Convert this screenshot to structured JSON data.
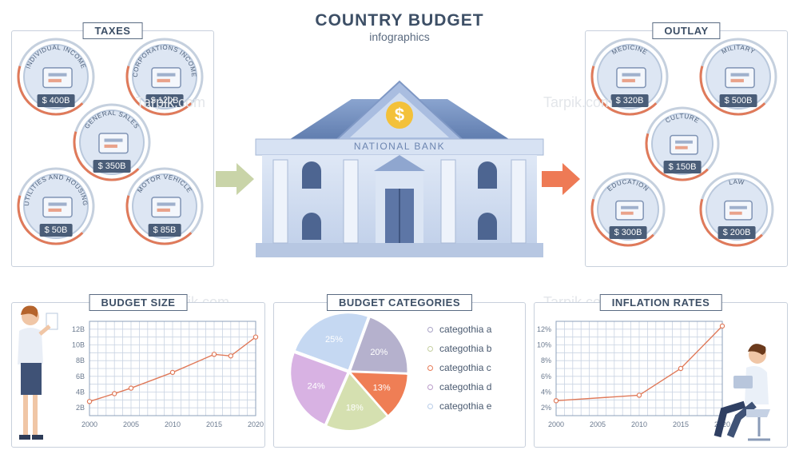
{
  "header": {
    "title": "COUNTRY BUDGET",
    "subtitle": "infographics"
  },
  "taxes": {
    "label": "TAXES",
    "items": [
      {
        "name": "INDIVIDUAL INCOME",
        "value": "$ 400B"
      },
      {
        "name": "CORPORATIONS INCOME",
        "value": "$ 120B"
      },
      {
        "name": "GENERAL SALES",
        "value": "$ 350B"
      },
      {
        "name": "UTILITIES AND HOUSING",
        "value": "$ 50B"
      },
      {
        "name": "MOTOR VEHICLE",
        "value": "$ 85B"
      }
    ]
  },
  "outlay": {
    "label": "OUTLAY",
    "items": [
      {
        "name": "MEDICINE",
        "value": "$ 320B"
      },
      {
        "name": "MILITARY",
        "value": "$ 500B"
      },
      {
        "name": "CULTURE",
        "value": "$ 150B"
      },
      {
        "name": "EDUCATION",
        "value": "$ 300B"
      },
      {
        "name": "LAW",
        "value": "$ 200B"
      }
    ]
  },
  "bank": {
    "label": "NATIONAL BANK",
    "symbol": "$"
  },
  "watermark": "Tarpik.com",
  "colors": {
    "accent": "#e07a5a",
    "arrow_in": "#c9d4a8",
    "arrow_out": "#ee7a55",
    "ink": "#3d4f66"
  },
  "charts": {
    "budget_size_label": "BUDGET SIZE",
    "categories_label": "BUDGET CATEGORIES",
    "inflation_label": "INFLATION RATES"
  },
  "chart_data": [
    {
      "type": "line",
      "title": "BUDGET SIZE",
      "x": [
        2000,
        2003,
        2005,
        2010,
        2015,
        2017,
        2020
      ],
      "y": [
        2.8,
        3.8,
        4.5,
        6.5,
        8.8,
        8.6,
        11.0
      ],
      "x_ticks": [
        "2000",
        "2005",
        "2010",
        "2015",
        "2020"
      ],
      "y_ticks": [
        "2B",
        "4B",
        "6B",
        "8B",
        "10B",
        "12B"
      ],
      "xlim": [
        2000,
        2020
      ],
      "ylim": [
        1,
        13
      ]
    },
    {
      "type": "pie",
      "title": "BUDGET CATEGORIES",
      "slices": [
        {
          "label": "categothia a",
          "value": 25,
          "text": "25%",
          "color": "#c5d8f2"
        },
        {
          "label": "categothia b",
          "value": 20,
          "text": "20%",
          "color": "#b5b1cd"
        },
        {
          "label": "categothia c",
          "value": 13,
          "text": "13%",
          "color": "#ef7e55"
        },
        {
          "label": "categothia d",
          "value": 18,
          "text": "18%",
          "color": "#d5e0b0"
        },
        {
          "label": "categothia e",
          "value": 24,
          "text": "24%",
          "color": "#d8b2e3"
        }
      ],
      "legend": [
        {
          "label": "categothia a",
          "color": "#a9a3c6"
        },
        {
          "label": "categothia b",
          "color": "#c5cfa0"
        },
        {
          "label": "categothia c",
          "color": "#e77b57"
        },
        {
          "label": "categothia d",
          "color": "#b99bc9"
        },
        {
          "label": "categothia e",
          "color": "#b8cde8"
        }
      ]
    },
    {
      "type": "line",
      "title": "INFLATION RATES",
      "x": [
        2000,
        2010,
        2015,
        2020
      ],
      "y": [
        2.9,
        3.6,
        7.0,
        12.4
      ],
      "x_ticks": [
        "2000",
        "2005",
        "2010",
        "2015",
        "2020"
      ],
      "y_ticks": [
        "2%",
        "4%",
        "6%",
        "8%",
        "10%",
        "12%"
      ],
      "xlim": [
        2000,
        2020
      ],
      "ylim": [
        1,
        13
      ]
    }
  ]
}
